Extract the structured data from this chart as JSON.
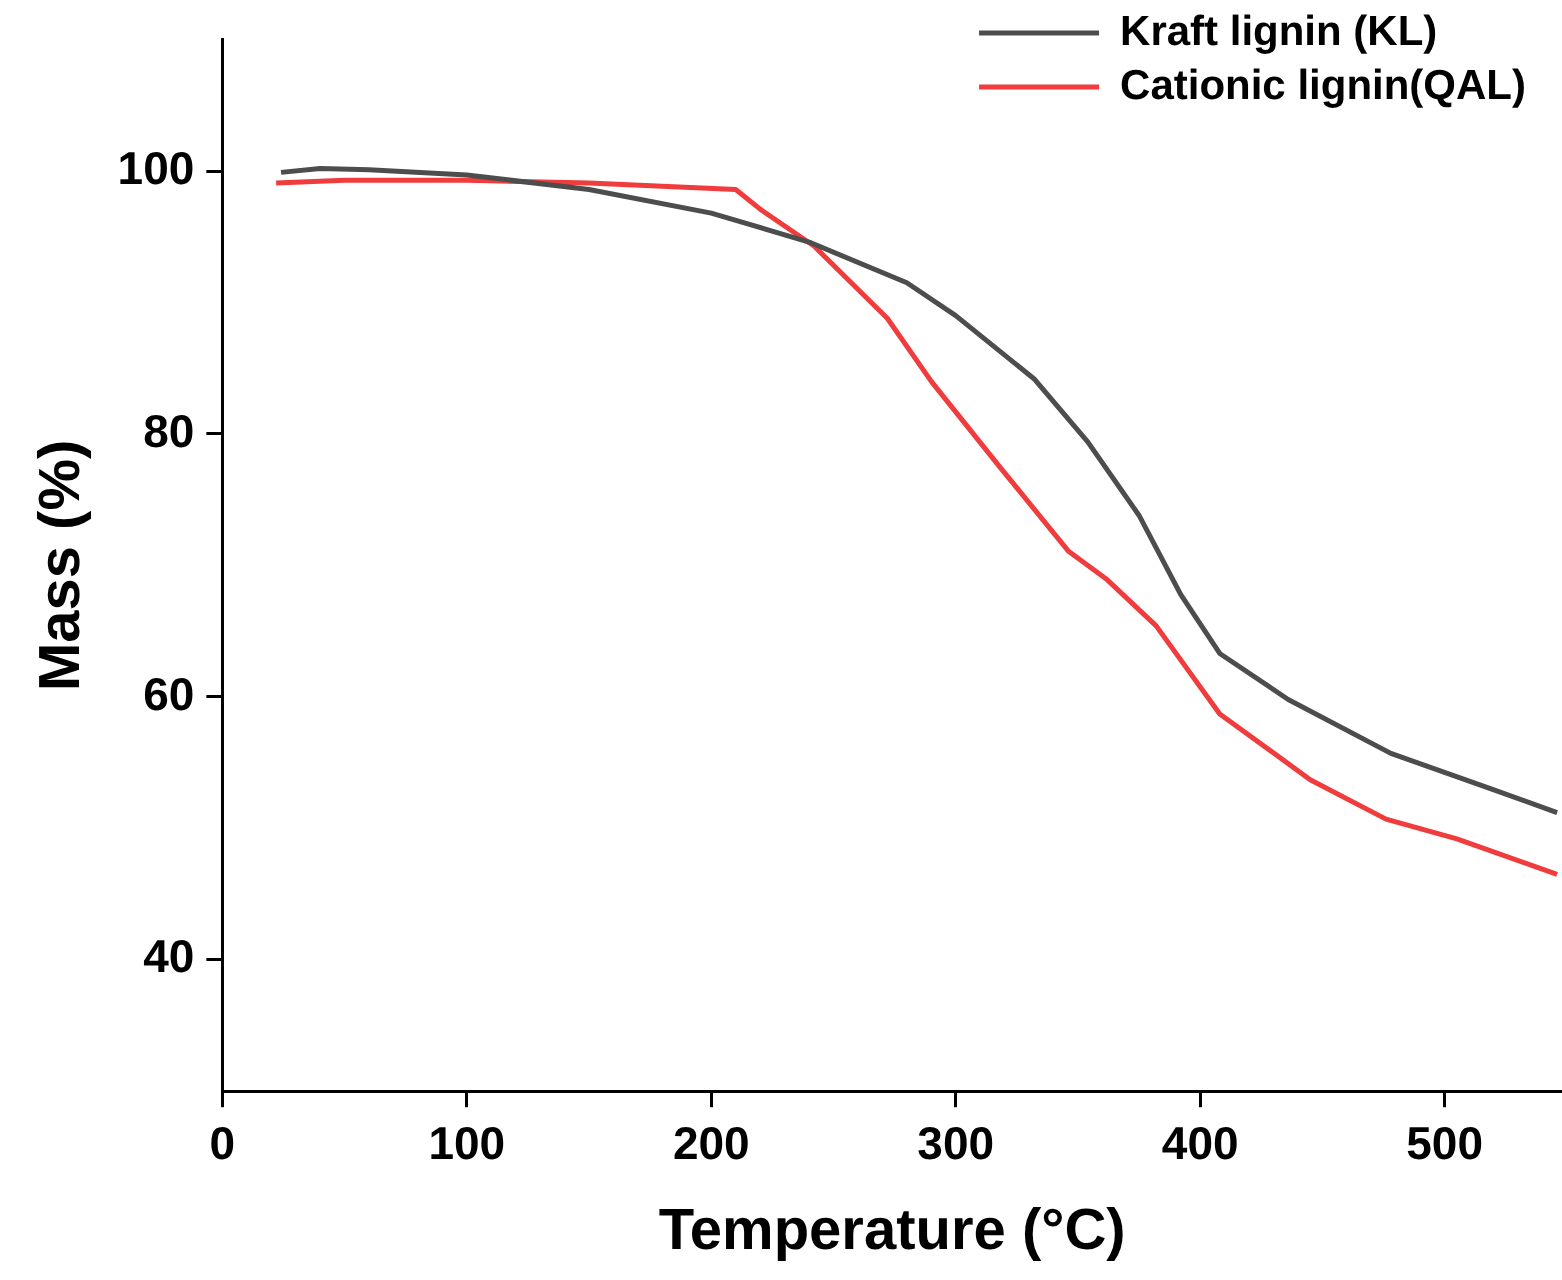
{
  "chart_data": {
    "type": "line",
    "xlabel": "Temperature (°C)",
    "ylabel": "Mass (%)",
    "xlim": [
      0,
      548
    ],
    "xticks": [
      0,
      100,
      200,
      300,
      400,
      500
    ],
    "ylim": [
      30,
      110
    ],
    "yticks": [
      40,
      60,
      80,
      100
    ],
    "grid": false,
    "legend": "top right",
    "marker": "none",
    "line_style": "solid",
    "series": [
      {
        "name": "Kraft lignin (KL)",
        "color": "#4d4d4d",
        "x": [
          24,
          40,
          60,
          100,
          150,
          200,
          240,
          280,
          300,
          332,
          354,
          375,
          392,
          408,
          436,
          478,
          519,
          546
        ],
        "values": [
          99.9,
          100.2,
          100.1,
          99.7,
          98.6,
          96.8,
          94.6,
          91.5,
          89.0,
          84.2,
          79.4,
          73.8,
          67.8,
          63.3,
          59.8,
          55.7,
          53.0,
          51.2
        ]
      },
      {
        "name": "Cationic lignin(QAL)",
        "color": "#f03c3c",
        "x": [
          22,
          50,
          100,
          150,
          210,
          220,
          242,
          272,
          290,
          318,
          346,
          362,
          382,
          408,
          445,
          476,
          505,
          546
        ],
        "values": [
          99.1,
          99.3,
          99.3,
          99.1,
          98.6,
          97.1,
          94.3,
          88.8,
          84.0,
          77.5,
          71.1,
          68.9,
          65.4,
          58.7,
          53.7,
          50.7,
          49.2,
          46.5
        ]
      }
    ]
  }
}
